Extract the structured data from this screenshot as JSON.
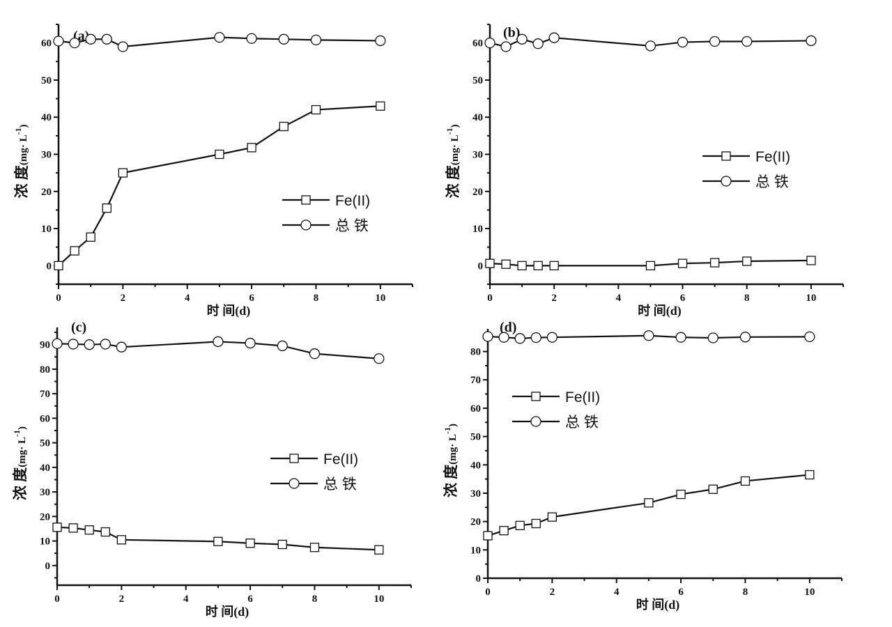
{
  "chart_data": [
    {
      "type": "line",
      "panel_label": "(a)",
      "xlabel": "时 间(d)",
      "ylabel": {
        "main": "浓 度",
        "unit": "(mg· L",
        "sup": "-1",
        "close": ")"
      },
      "xlim": [
        0,
        11
      ],
      "ylim": [
        -5,
        65
      ],
      "xticks": [
        0,
        2,
        4,
        6,
        8,
        10
      ],
      "yticks": [
        0,
        10,
        20,
        30,
        40,
        50,
        60
      ],
      "x": [
        0,
        0.5,
        1,
        1.5,
        2,
        5,
        6,
        7,
        8,
        10
      ],
      "series": [
        {
          "name": "Fe(II)",
          "marker": "square",
          "values": [
            0,
            4,
            7.7,
            15.5,
            25,
            30,
            31.8,
            37.5,
            42,
            43
          ]
        },
        {
          "name": "总  铁",
          "marker": "circle",
          "values": [
            60.5,
            60,
            61,
            61,
            59,
            61.5,
            61.2,
            61,
            60.8,
            60.6
          ]
        }
      ],
      "legend_position": "center-right"
    },
    {
      "type": "line",
      "panel_label": "(b)",
      "xlabel": "时 间(d)",
      "ylabel": {
        "main": "浓 度",
        "unit": "(mg· L",
        "sup": "-1",
        "close": ")"
      },
      "xlim": [
        0,
        11
      ],
      "ylim": [
        -5,
        65
      ],
      "xticks": [
        0,
        2,
        4,
        6,
        8,
        10
      ],
      "yticks": [
        0,
        10,
        20,
        30,
        40,
        50,
        60
      ],
      "x": [
        0,
        0.5,
        1,
        1.5,
        2,
        5,
        6,
        7,
        8,
        10
      ],
      "series": [
        {
          "name": "Fe(II)",
          "marker": "square",
          "values": [
            0.6,
            0.4,
            0,
            0,
            0,
            0,
            0.6,
            0.8,
            1.2,
            1.4
          ]
        },
        {
          "name": "总  铁",
          "marker": "circle",
          "values": [
            60,
            59,
            61,
            59.8,
            61.4,
            59.2,
            60.2,
            60.4,
            60.4,
            60.6
          ]
        }
      ],
      "legend_position": "center-right"
    },
    {
      "type": "line",
      "panel_label": "(c)",
      "xlabel": "时 间(d)",
      "ylabel": {
        "main": "浓 度",
        "unit": "(mg· L",
        "sup": "-1",
        "close": ")"
      },
      "xlim": [
        0,
        11
      ],
      "ylim": [
        -8,
        97
      ],
      "xticks": [
        0,
        2,
        4,
        6,
        8,
        10
      ],
      "yticks": [
        0,
        10,
        20,
        30,
        40,
        50,
        60,
        70,
        80,
        90
      ],
      "x": [
        0,
        0.5,
        1,
        1.5,
        2,
        5,
        6,
        7,
        8,
        10
      ],
      "series": [
        {
          "name": "Fe(II)",
          "marker": "square",
          "values": [
            15.6,
            15.3,
            14.5,
            13.7,
            10.5,
            9.8,
            9.1,
            8.6,
            7.4,
            6.4
          ]
        },
        {
          "name": "总  铁",
          "marker": "circle",
          "values": [
            90.4,
            90.2,
            90,
            90.2,
            89,
            91.2,
            90.6,
            89.5,
            86.3,
            84.3
          ]
        }
      ],
      "legend_position": "center-right"
    },
    {
      "type": "line",
      "panel_label": "(d)",
      "xlabel": "时 间(d)",
      "ylabel": {
        "main": "浓 度",
        "unit": "(mg· L",
        "sup": "-1",
        "close": ")"
      },
      "xlim": [
        0,
        11
      ],
      "ylim": [
        0,
        88
      ],
      "xticks": [
        0,
        2,
        4,
        6,
        8,
        10
      ],
      "yticks": [
        0,
        10,
        20,
        30,
        40,
        50,
        60,
        70,
        80
      ],
      "x": [
        0,
        0.5,
        1,
        1.5,
        2,
        5,
        6,
        7,
        8,
        10
      ],
      "series": [
        {
          "name": "Fe(II)",
          "marker": "square",
          "values": [
            15,
            16.8,
            18.6,
            19.3,
            21.6,
            26.6,
            29.6,
            31.4,
            34.3,
            36.5
          ]
        },
        {
          "name": "总  铁",
          "marker": "circle",
          "values": [
            85.3,
            85,
            84.6,
            84.9,
            85,
            85.6,
            85,
            84.8,
            85.1,
            85.2
          ]
        }
      ],
      "legend_position": "center-left"
    }
  ]
}
